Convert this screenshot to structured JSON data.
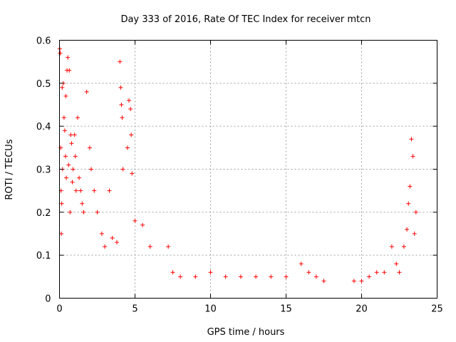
{
  "chart_data": {
    "type": "scatter",
    "title": "Day 333 of 2016, Rate Of TEC Index for receiver mtcn",
    "xlabel": "GPS time / hours",
    "ylabel": "ROTI / TECUs",
    "xlim": [
      0,
      25
    ],
    "ylim": [
      0,
      0.6
    ],
    "xticks": [
      "0",
      "5",
      "10",
      "15",
      "20",
      "25"
    ],
    "yticks": [
      "0",
      "0.1",
      "0.2",
      "0.3",
      "0.4",
      "0.5",
      "0.6"
    ],
    "grid": true,
    "marker": "+",
    "color": "#ff0000",
    "series": [
      {
        "name": "ROTI",
        "x": [
          0.02,
          0.05,
          0.08,
          0.1,
          0.12,
          0.15,
          0.18,
          0.2,
          0.25,
          0.3,
          0.35,
          0.4,
          0.42,
          0.45,
          0.5,
          0.55,
          0.6,
          0.65,
          0.7,
          0.75,
          0.8,
          0.85,
          0.9,
          1.0,
          1.05,
          1.1,
          1.2,
          1.3,
          1.4,
          1.5,
          1.6,
          1.8,
          2.0,
          2.1,
          2.3,
          2.5,
          2.8,
          3.0,
          3.3,
          3.5,
          3.8,
          4.0,
          4.05,
          4.1,
          4.15,
          4.2,
          4.5,
          4.6,
          4.7,
          4.75,
          4.8,
          5.0,
          5.5,
          6.0,
          7.2,
          7.5,
          8.0,
          9.0,
          10.0,
          11.0,
          12.0,
          13.0,
          14.0,
          15.0,
          16.0,
          16.5,
          17.0,
          17.5,
          19.5,
          20.0,
          20.5,
          21.0,
          21.5,
          22.0,
          22.3,
          22.5,
          22.8,
          23.0,
          23.1,
          23.2,
          23.3,
          23.4,
          23.5,
          23.6
        ],
        "y": [
          0.58,
          0.57,
          0.35,
          0.25,
          0.15,
          0.22,
          0.49,
          0.3,
          0.5,
          0.42,
          0.39,
          0.33,
          0.47,
          0.28,
          0.53,
          0.56,
          0.31,
          0.53,
          0.2,
          0.38,
          0.36,
          0.27,
          0.3,
          0.38,
          0.33,
          0.25,
          0.42,
          0.28,
          0.25,
          0.22,
          0.2,
          0.48,
          0.35,
          0.3,
          0.25,
          0.2,
          0.15,
          0.12,
          0.25,
          0.14,
          0.13,
          0.55,
          0.49,
          0.45,
          0.42,
          0.3,
          0.35,
          0.46,
          0.44,
          0.38,
          0.29,
          0.18,
          0.17,
          0.12,
          0.12,
          0.06,
          0.05,
          0.05,
          0.06,
          0.05,
          0.05,
          0.05,
          0.05,
          0.05,
          0.08,
          0.06,
          0.05,
          0.04,
          0.04,
          0.04,
          0.05,
          0.06,
          0.06,
          0.12,
          0.08,
          0.06,
          0.12,
          0.16,
          0.22,
          0.26,
          0.37,
          0.33,
          0.15,
          0.2
        ]
      }
    ]
  }
}
